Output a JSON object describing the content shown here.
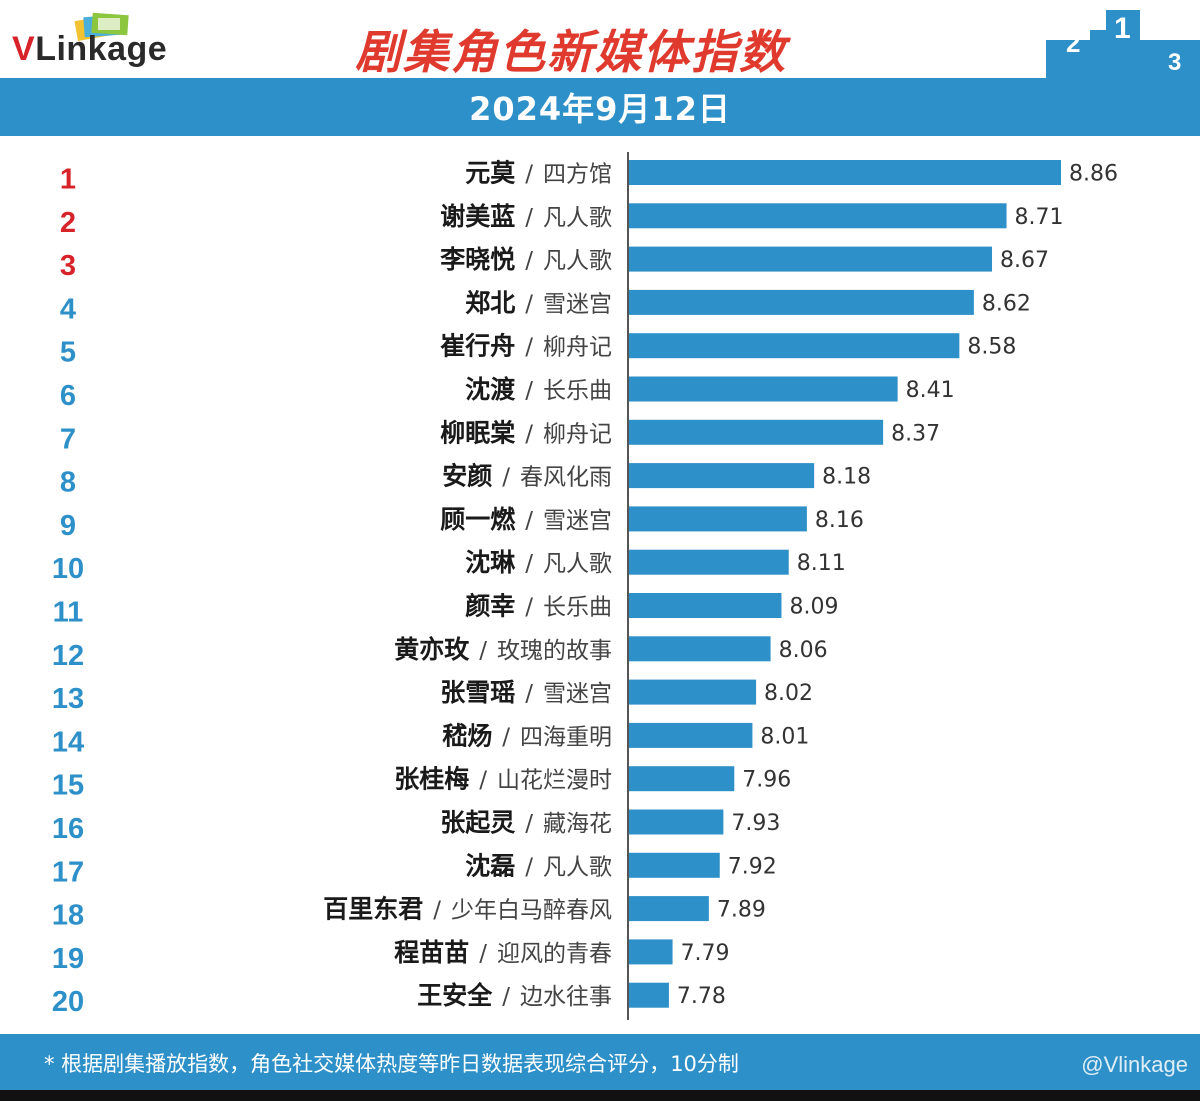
{
  "header": {
    "logo_text": "Linkage",
    "logo_v": "V",
    "title": "剧集角色新媒体指数",
    "date": "2024年9月12日"
  },
  "colors": {
    "bar": "#2e90c9",
    "band": "#2e90c9",
    "rank_top3": "#d8222a",
    "rank_rest": "#2e90c9",
    "title": "#e03a2f"
  },
  "chart_data": {
    "type": "bar",
    "orientation": "horizontal",
    "separator": "/",
    "title": "剧集角色新媒体指数",
    "ranks": [
      "1",
      "2",
      "3",
      "4",
      "5",
      "6",
      "7",
      "8",
      "9",
      "10",
      "11",
      "12",
      "13",
      "14",
      "15",
      "16",
      "17",
      "18",
      "19",
      "20"
    ],
    "names": [
      "元莫",
      "谢美蓝",
      "李晓悦",
      "郑北",
      "崔行舟",
      "沈渡",
      "柳眠棠",
      "安颜",
      "顾一燃",
      "沈琳",
      "颜幸",
      "黄亦玫",
      "张雪瑶",
      "嵇炀",
      "张桂梅",
      "张起灵",
      "沈磊",
      "百里东君",
      "程苗苗",
      "王安全"
    ],
    "dramas": [
      "四方馆",
      "凡人歌",
      "凡人歌",
      "雪迷宫",
      "柳舟记",
      "长乐曲",
      "柳舟记",
      "春风化雨",
      "雪迷宫",
      "凡人歌",
      "长乐曲",
      "玫瑰的故事",
      "雪迷宫",
      "四海重明",
      "山花烂漫时",
      "藏海花",
      "凡人歌",
      "少年白马醉春风",
      "迎风的青春",
      "边水往事"
    ],
    "values": [
      8.86,
      8.71,
      8.67,
      8.62,
      8.58,
      8.41,
      8.37,
      8.18,
      8.16,
      8.11,
      8.09,
      8.06,
      8.02,
      8.01,
      7.96,
      7.93,
      7.92,
      7.89,
      7.79,
      7.78
    ],
    "value_labels": [
      "8.86",
      "8.71",
      "8.67",
      "8.62",
      "8.58",
      "8.41",
      "8.37",
      "8.18",
      "8.16",
      "8.11",
      "8.09",
      "8.06",
      "8.02",
      "8.01",
      "7.96",
      "7.93",
      "7.92",
      "7.89",
      "7.79",
      "7.78"
    ],
    "xlim": [
      7.67,
      8.86
    ],
    "xlabel": "",
    "ylabel": "",
    "grid": false,
    "legend": "none"
  },
  "footer": {
    "note": "* 根据剧集播放指数，角色社交媒体热度等昨日数据表现综合评分，",
    "note_tail": "10分制",
    "watermark": "@Vlinkage"
  }
}
